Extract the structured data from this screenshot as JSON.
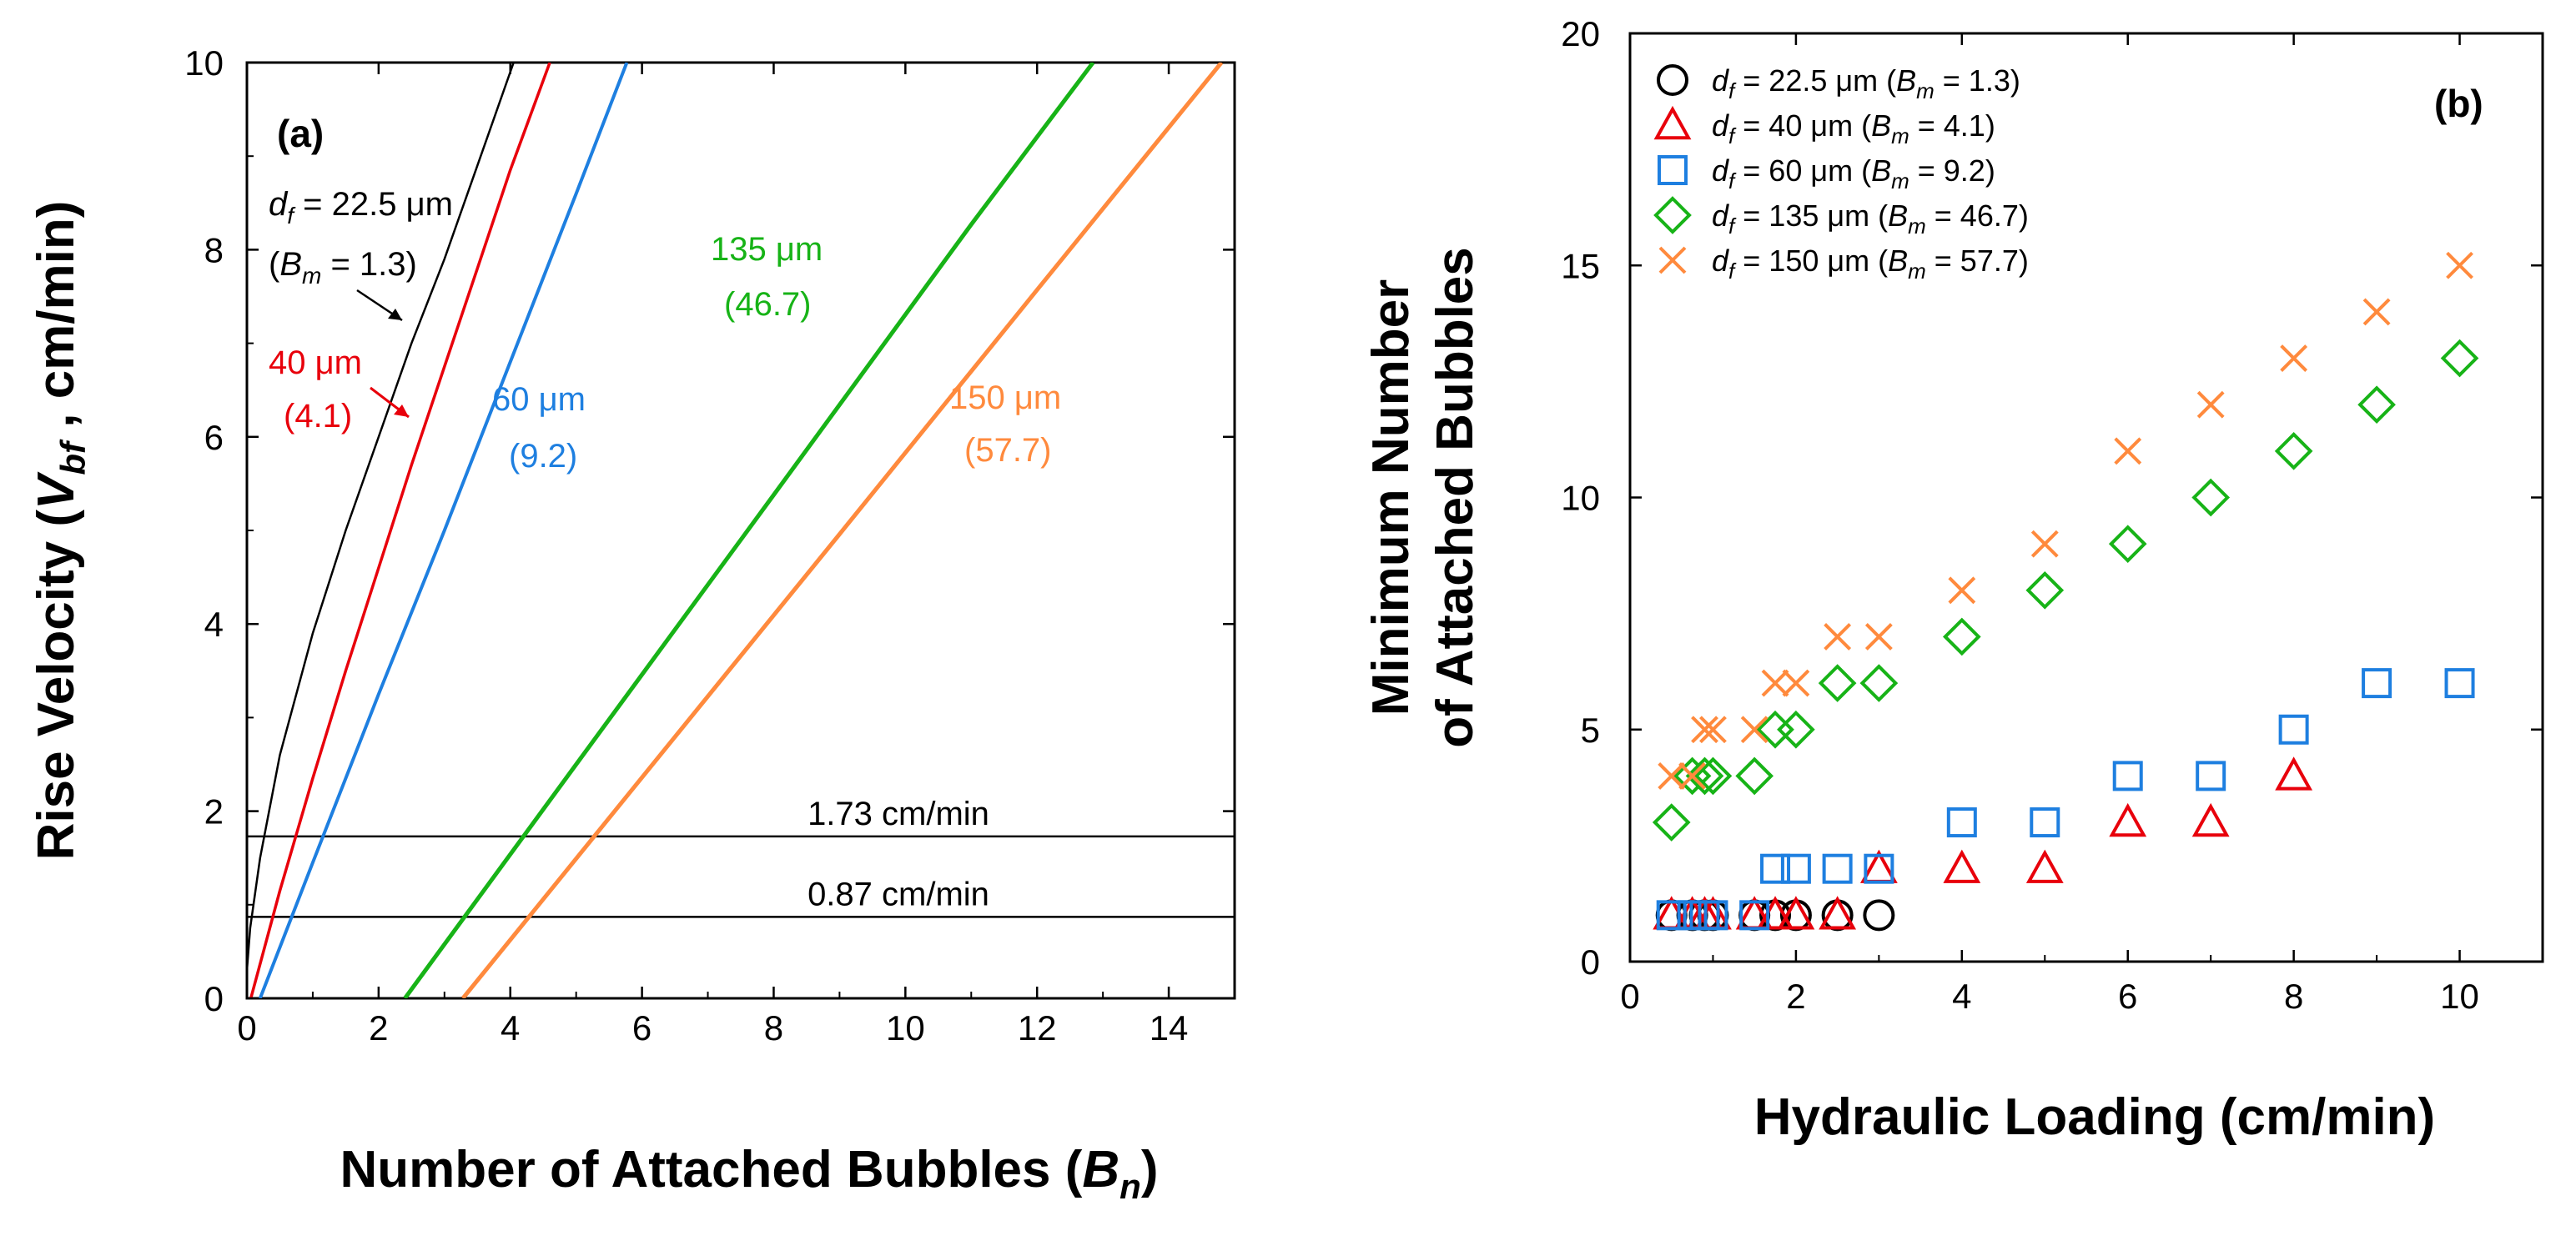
{
  "chart_data": [
    {
      "type": "line",
      "panel_label": "(a)",
      "xlabel": "Number of Attached Bubbles (B_n)",
      "xlabel_parts": [
        "Number of Attached Bubbles (",
        "B",
        "n",
        ")"
      ],
      "ylabel": "Rise Velocity (V_bf , cm/min)",
      "ylabel_parts": [
        "Rise Velocity (",
        "V",
        "bf",
        " , cm/min)"
      ],
      "xlim": [
        0,
        15
      ],
      "ylim": [
        0,
        10
      ],
      "xticks": [
        0,
        2,
        4,
        6,
        8,
        10,
        12,
        14
      ],
      "yticks": [
        0,
        2,
        4,
        6,
        8,
        10
      ],
      "series": [
        {
          "name": "d_f = 22.5 µm (B_m = 1.3)",
          "color": "#000000",
          "line_width": 2.5,
          "x": [
            0.0,
            0.05,
            0.2,
            0.5,
            1.0,
            1.5,
            2.0,
            2.5,
            3.0,
            3.5,
            4.05
          ],
          "y": [
            0.3,
            0.75,
            1.5,
            2.6,
            3.9,
            5.0,
            6.0,
            7.0,
            7.9,
            8.9,
            10.0
          ]
        },
        {
          "name": "d_f = 40 µm (B_m = 4.1)",
          "color": "#e8000b",
          "line_width": 3.5,
          "x": [
            0.06,
            0.5,
            1.0,
            1.5,
            2.0,
            2.5,
            3.0,
            3.5,
            4.0,
            4.6
          ],
          "y": [
            0.0,
            1.15,
            2.35,
            3.5,
            4.6,
            5.7,
            6.75,
            7.8,
            8.85,
            10.0
          ]
        },
        {
          "name": "d_f = 60 µm (B_m = 9.2)",
          "color": "#1e7fe0",
          "line_width": 4,
          "x": [
            0.2,
            1.0,
            2.0,
            3.0,
            4.0,
            5.0,
            5.77
          ],
          "y": [
            0.0,
            1.45,
            3.25,
            5.0,
            6.8,
            8.6,
            10.0
          ]
        },
        {
          "name": "d_f = 135 µm (B_m = 46.7)",
          "color": "#17b317",
          "line_width": 5,
          "x": [
            2.4,
            5.0,
            8.0,
            11.0,
            12.85
          ],
          "y": [
            0.0,
            2.5,
            5.38,
            8.27,
            10.0
          ]
        },
        {
          "name": "d_f = 150 µm (B_m = 57.7)",
          "color": "#ff8a3d",
          "line_width": 5,
          "x": [
            3.28,
            6.0,
            9.0,
            12.0,
            14.8
          ],
          "y": [
            0.0,
            2.36,
            4.96,
            7.57,
            10.0
          ]
        }
      ],
      "hlines": [
        {
          "y": 1.73,
          "label": "1.73 cm/min"
        },
        {
          "y": 0.87,
          "label": "0.87 cm/min"
        }
      ],
      "annotations": [
        {
          "lines": [
            "d_f = 22.5 µm",
            "(B_m = 1.3)"
          ],
          "color": "#000000"
        },
        {
          "lines": [
            "40 µm",
            "(4.1)"
          ],
          "color": "#e8000b"
        },
        {
          "lines": [
            "60 µm",
            "(9.2)"
          ],
          "color": "#1e7fe0"
        },
        {
          "lines": [
            "135 µm",
            "(46.7)"
          ],
          "color": "#17b317"
        },
        {
          "lines": [
            "150 µm",
            "(57.7)"
          ],
          "color": "#ff8a3d"
        }
      ]
    },
    {
      "type": "scatter",
      "panel_label": "(b)",
      "xlabel": "Hydraulic Loading (cm/min)",
      "ylabel": "Minimum Number of Attached Bubbles",
      "ylabel_lines": [
        "Minimum Number",
        "of Attached Bubbles"
      ],
      "xlim": [
        0,
        11
      ],
      "ylim": [
        0,
        20
      ],
      "xticks": [
        0,
        2,
        4,
        6,
        8,
        10
      ],
      "yticks": [
        0,
        5,
        10,
        15,
        20
      ],
      "legend_position": "top-left",
      "series": [
        {
          "name": "d_f = 22.5 µm (B_m = 1.3)",
          "df": "22.5",
          "bm": "1.3",
          "marker": "circle",
          "color": "#000000",
          "x": [
            0.5,
            0.75,
            0.9,
            1.0,
            1.5,
            1.75,
            2.0,
            2.5,
            3.0
          ],
          "y": [
            1,
            1,
            1,
            1,
            1,
            1,
            1,
            1,
            1
          ]
        },
        {
          "name": "d_f = 40 µm (B_m = 4.1)",
          "df": "40",
          "bm": "4.1",
          "marker": "triangle",
          "color": "#e8000b",
          "x": [
            0.5,
            0.75,
            0.9,
            1.0,
            1.5,
            1.75,
            2.0,
            2.5,
            3.0,
            4.0,
            5.0,
            6.0,
            7.0,
            8.0
          ],
          "y": [
            1,
            1,
            1,
            1,
            1,
            1,
            1,
            1,
            2,
            2,
            2,
            3,
            3,
            4
          ]
        },
        {
          "name": "d_f = 60 µm (B_m = 9.2)",
          "df": "60",
          "bm": "9.2",
          "marker": "square",
          "color": "#1e7fe0",
          "x": [
            0.5,
            0.75,
            0.9,
            1.0,
            1.5,
            1.75,
            2.0,
            2.5,
            3.0,
            4.0,
            5.0,
            6.0,
            7.0,
            8.0,
            9.0,
            10.0
          ],
          "y": [
            1,
            1,
            1,
            1,
            1,
            2,
            2,
            2,
            2,
            3,
            3,
            4,
            4,
            5,
            6,
            6
          ]
        },
        {
          "name": "d_f = 135 µm (B_m = 46.7)",
          "df": "135",
          "bm": "46.7",
          "marker": "diamond",
          "color": "#17b317",
          "x": [
            0.5,
            0.75,
            0.9,
            1.0,
            1.5,
            1.75,
            2.0,
            2.5,
            3.0,
            4.0,
            5.0,
            6.0,
            7.0,
            8.0,
            9.0,
            10.0
          ],
          "y": [
            3,
            4,
            4,
            4,
            4,
            5,
            5,
            6,
            6,
            7,
            8,
            9,
            10,
            11,
            12,
            13
          ]
        },
        {
          "name": "d_f = 150 µm (B_m = 57.7)",
          "df": "150",
          "bm": "57.7",
          "marker": "x",
          "color": "#ff8a3d",
          "x": [
            0.5,
            0.75,
            0.9,
            1.0,
            1.5,
            1.75,
            2.0,
            2.5,
            3.0,
            4.0,
            5.0,
            6.0,
            7.0,
            8.0,
            9.0,
            10.0
          ],
          "y": [
            4,
            4,
            5,
            5,
            5,
            6,
            6,
            7,
            7,
            8,
            9,
            11,
            12,
            13,
            14,
            15
          ]
        }
      ]
    }
  ]
}
